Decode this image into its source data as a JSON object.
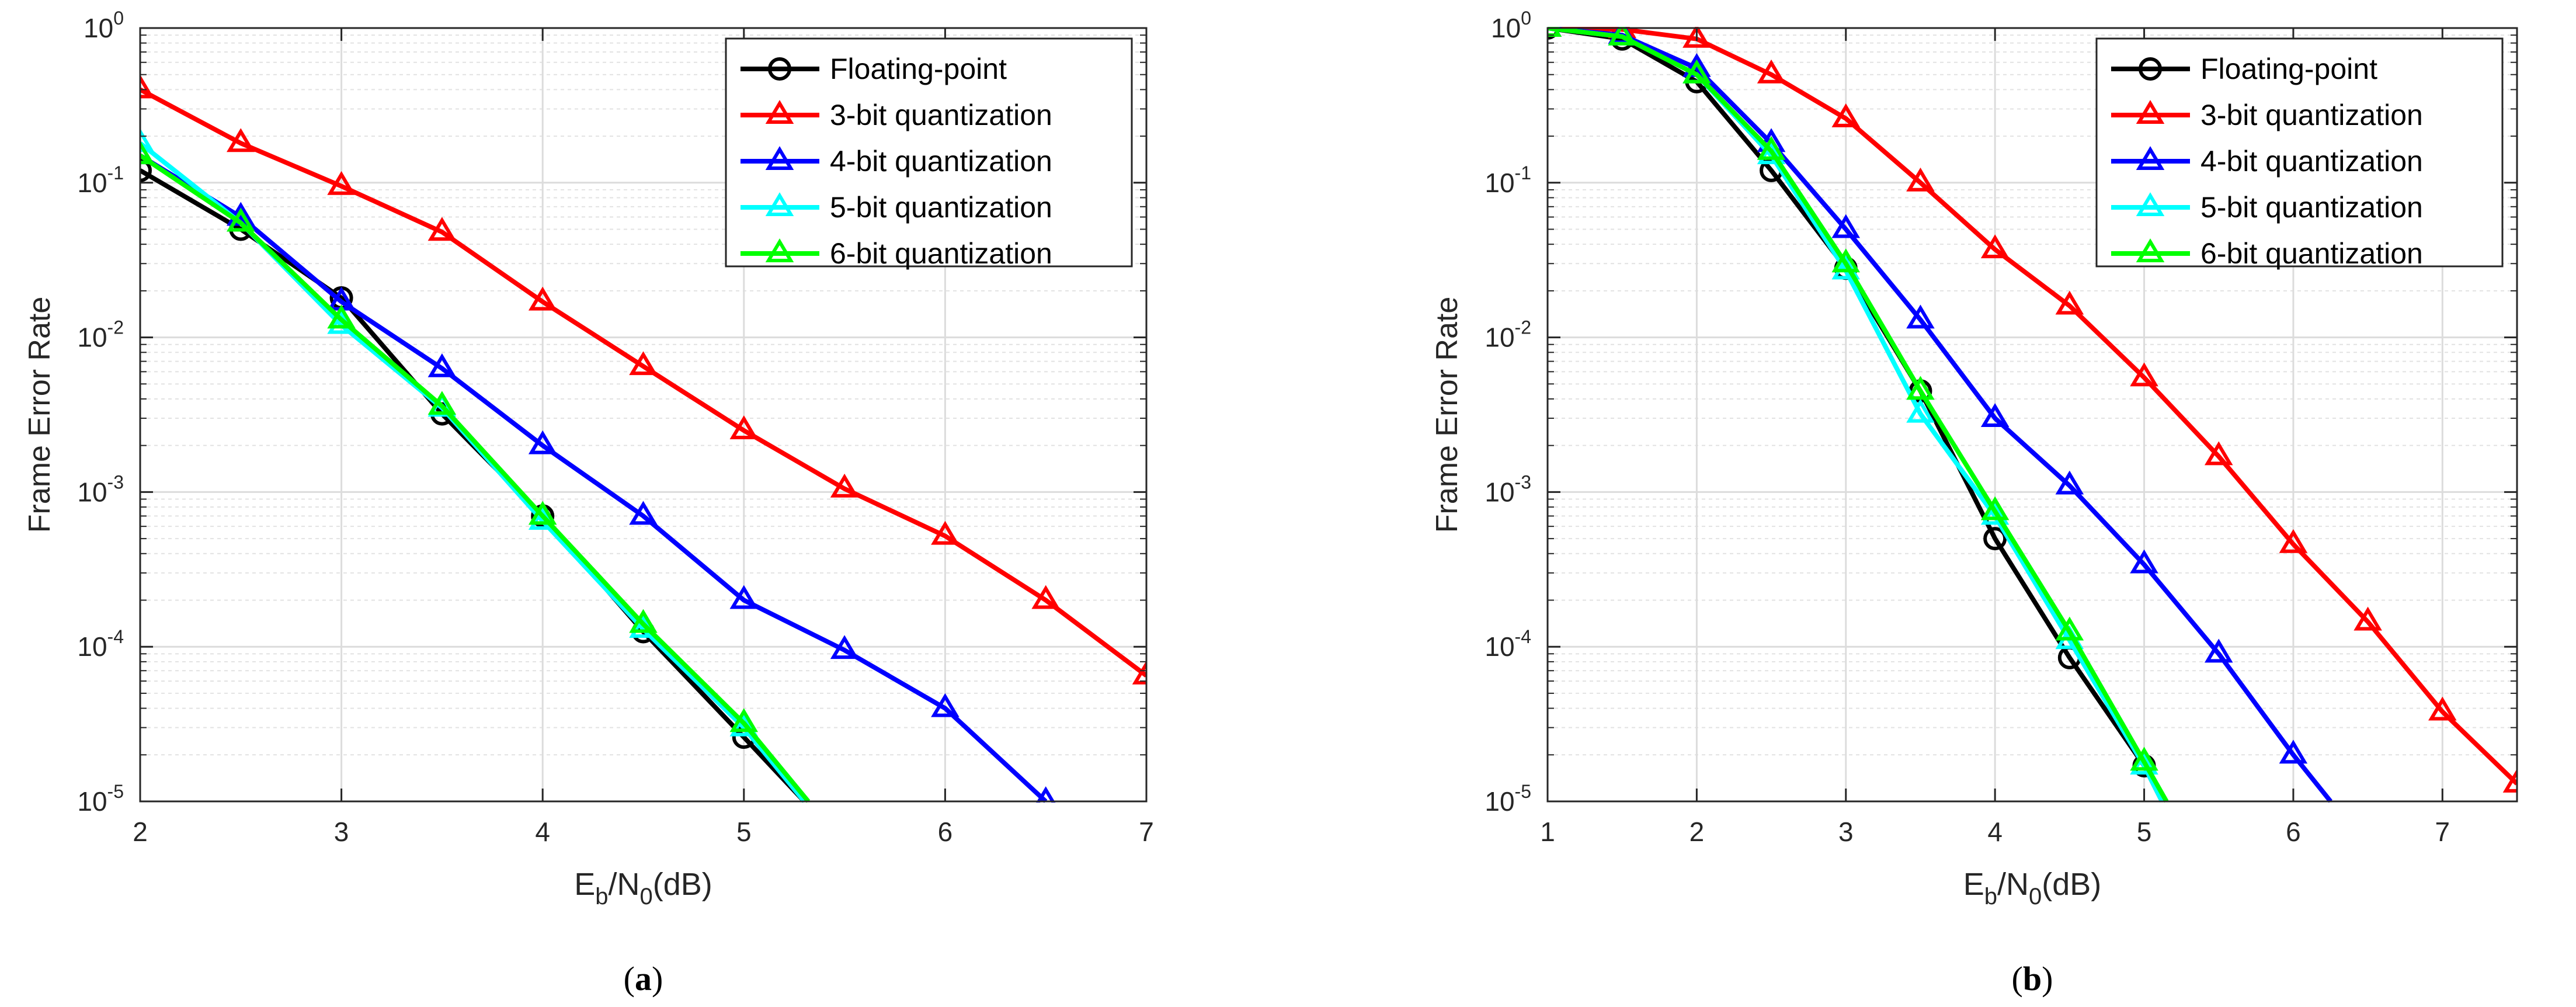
{
  "colors": {
    "floating": "#000000",
    "q3": "#ff0000",
    "q4": "#0000ff",
    "q5": "#00ffff",
    "q6": "#00ff00",
    "grid": "#dcdcdc",
    "axis": "#262626"
  },
  "chart_data": [
    {
      "type": "line",
      "panel_label": "a",
      "title": "",
      "xlabel": {
        "main": "E",
        "sub1": "b",
        "mid": "/N",
        "sub2": "0",
        "tail": "(dB)"
      },
      "ylabel": "Frame Error Rate",
      "xlim": [
        2,
        7
      ],
      "ylim": [
        1e-05,
        1
      ],
      "yscale": "log",
      "grid": true,
      "legend_position": "top-right",
      "xticks": [
        2,
        3,
        4,
        5,
        6,
        7
      ],
      "xtick_labels": [
        "2",
        "3",
        "4",
        "5",
        "6",
        "7"
      ],
      "yticks": [
        1e-05,
        0.0001,
        0.001,
        0.01,
        0.1,
        1
      ],
      "ytick_labels": [
        {
          "base": "10",
          "exp": "-5"
        },
        {
          "base": "10",
          "exp": "-4"
        },
        {
          "base": "10",
          "exp": "-3"
        },
        {
          "base": "10",
          "exp": "-2"
        },
        {
          "base": "10",
          "exp": "-1"
        },
        {
          "base": "10",
          "exp": "0"
        }
      ],
      "series": [
        {
          "name": "Floating-point",
          "color_key": "floating",
          "marker": "circle",
          "x": [
            2,
            2.5,
            3,
            3.5,
            4,
            4.5,
            5
          ],
          "y": [
            0.12,
            0.05,
            0.018,
            0.0032,
            0.0007,
            0.000125,
            2.6e-05
          ],
          "tail": [
            5.3,
            1e-05
          ]
        },
        {
          "name": "3-bit quantization",
          "color_key": "q3",
          "marker": "triangle",
          "x": [
            2,
            2.5,
            3,
            3.5,
            4,
            4.5,
            5,
            5.5,
            6,
            6.5,
            7
          ],
          "y": [
            0.4,
            0.18,
            0.095,
            0.048,
            0.017,
            0.0065,
            0.0025,
            0.00105,
            0.00052,
            0.0002,
            6.5e-05
          ],
          "tail": null
        },
        {
          "name": "4-bit quantization",
          "color_key": "q4",
          "marker": "triangle",
          "x": [
            2,
            2.5,
            3,
            3.5,
            4,
            4.5,
            5,
            5.5,
            6,
            6.5
          ],
          "y": [
            0.15,
            0.06,
            0.017,
            0.0063,
            0.002,
            0.0007,
            0.0002,
            9.5e-05,
            4e-05,
            1e-05
          ],
          "tail": null
        },
        {
          "name": "5-bit quantization",
          "color_key": "q5",
          "marker": "triangle",
          "x": [
            2,
            2.5,
            3,
            3.5,
            4,
            4.5,
            5
          ],
          "y": [
            0.18,
            0.055,
            0.012,
            0.0035,
            0.00065,
            0.00013,
            3e-05
          ],
          "tail": [
            5.3,
            1e-05
          ]
        },
        {
          "name": "6-bit quantization",
          "color_key": "q6",
          "marker": "triangle",
          "x": [
            2,
            2.5,
            3,
            3.5,
            4,
            4.5,
            5
          ],
          "y": [
            0.15,
            0.055,
            0.013,
            0.0036,
            0.0007,
            0.00014,
            3.2e-05
          ],
          "tail": [
            5.32,
            1e-05
          ]
        }
      ]
    },
    {
      "type": "line",
      "panel_label": "b",
      "title": "",
      "xlabel": {
        "main": "E",
        "sub1": "b",
        "mid": "/N",
        "sub2": "0",
        "tail": "(dB)"
      },
      "ylabel": "Frame Error Rate",
      "xlim": [
        1,
        7.5
      ],
      "ylim": [
        1e-05,
        1
      ],
      "yscale": "log",
      "grid": true,
      "legend_position": "top-right",
      "xticks": [
        1,
        2,
        3,
        4,
        5,
        6,
        7
      ],
      "xtick_labels": [
        "1",
        "2",
        "3",
        "4",
        "5",
        "6",
        "7"
      ],
      "yticks": [
        1e-05,
        0.0001,
        0.001,
        0.01,
        0.1,
        1
      ],
      "ytick_labels": [
        {
          "base": "10",
          "exp": "-5"
        },
        {
          "base": "10",
          "exp": "-4"
        },
        {
          "base": "10",
          "exp": "-3"
        },
        {
          "base": "10",
          "exp": "-2"
        },
        {
          "base": "10",
          "exp": "-1"
        },
        {
          "base": "10",
          "exp": "0"
        }
      ],
      "series": [
        {
          "name": "Floating-point",
          "color_key": "floating",
          "marker": "circle",
          "x": [
            1,
            1.5,
            2,
            2.5,
            3,
            3.5,
            4,
            4.5,
            5
          ],
          "y": [
            1.0,
            0.85,
            0.45,
            0.12,
            0.028,
            0.0045,
            0.0005,
            8.5e-05,
            1.7e-05
          ],
          "tail": [
            5.12,
            1e-05
          ]
        },
        {
          "name": "3-bit quantization",
          "color_key": "q3",
          "marker": "triangle",
          "x": [
            1,
            1.5,
            2,
            2.5,
            3,
            3.5,
            4,
            4.5,
            5,
            5.5,
            6,
            6.5,
            7,
            7.5
          ],
          "y": [
            1.0,
            0.98,
            0.85,
            0.5,
            0.26,
            0.1,
            0.037,
            0.016,
            0.0055,
            0.0017,
            0.00046,
            0.000145,
            3.8e-05,
            1.3e-05
          ],
          "tail": null
        },
        {
          "name": "4-bit quantization",
          "color_key": "q4",
          "marker": "triangle",
          "x": [
            1,
            1.5,
            2,
            2.5,
            3,
            3.5,
            4,
            4.5,
            5,
            5.5,
            6
          ],
          "y": [
            1.0,
            0.9,
            0.55,
            0.18,
            0.05,
            0.013,
            0.003,
            0.0011,
            0.00034,
            9e-05,
            2e-05
          ],
          "tail": [
            6.25,
            1e-05
          ]
        },
        {
          "name": "5-bit quantization",
          "color_key": "q5",
          "marker": "triangle",
          "x": [
            1,
            1.5,
            2,
            2.5,
            3,
            3.5,
            4,
            4.5,
            5
          ],
          "y": [
            1.0,
            0.88,
            0.5,
            0.15,
            0.027,
            0.0032,
            0.0007,
            0.00011,
            1.7e-05
          ],
          "tail": [
            5.12,
            1e-05
          ]
        },
        {
          "name": "6-bit quantization",
          "color_key": "q6",
          "marker": "triangle",
          "x": [
            1,
            1.5,
            2,
            2.5,
            3,
            3.5,
            4,
            4.5,
            5
          ],
          "y": [
            1.0,
            0.88,
            0.5,
            0.16,
            0.03,
            0.0045,
            0.00075,
            0.000125,
            1.8e-05
          ],
          "tail": [
            5.15,
            1e-05
          ]
        }
      ]
    }
  ],
  "captions": [
    {
      "open": "(",
      "label": "a",
      "close": ")"
    },
    {
      "open": "(",
      "label": "b",
      "close": ")"
    }
  ]
}
